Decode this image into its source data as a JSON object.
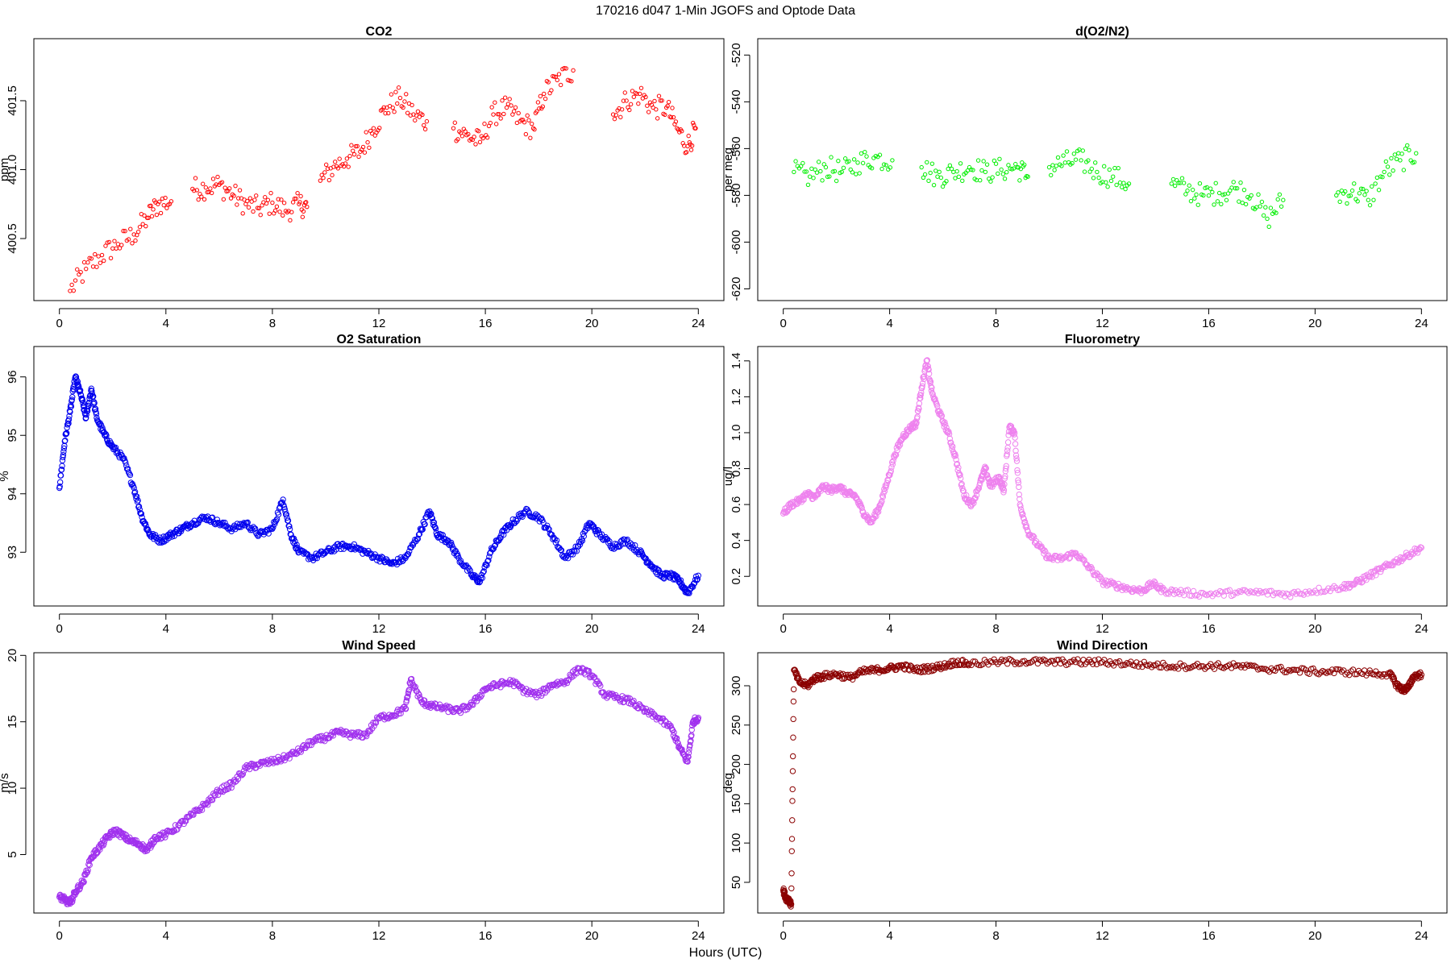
{
  "figure": {
    "title": "170216   d047   1-Min  JGOFS and Optode Data",
    "xlabel": "Hours (UTC)"
  },
  "chart_data": [
    {
      "type": "scatter",
      "id": "co2",
      "title": "CO2",
      "ylabel": "ppm",
      "color": "#ff0000",
      "xlim": [
        -0.96,
        24.96
      ],
      "ylim": [
        400.05,
        401.95
      ],
      "xticks": [
        0,
        4,
        8,
        12,
        16,
        20,
        24
      ],
      "yticks": [
        400.5,
        401.0,
        401.5
      ],
      "ytick_labels": [
        "400.5",
        "401.0",
        "401.5"
      ],
      "segments": [
        {
          "x": [
            0.4,
            1.0,
            1.6,
            2.2,
            2.8,
            3.3,
            3.7,
            4.2
          ],
          "y": [
            400.12,
            400.28,
            400.38,
            400.46,
            400.53,
            400.65,
            400.75,
            400.77
          ]
        },
        {
          "x": [
            5.0,
            5.5,
            6.0,
            6.5,
            7.0,
            7.5,
            8.0,
            8.5,
            9.0,
            9.3
          ],
          "y": [
            400.86,
            400.87,
            400.89,
            400.82,
            400.75,
            400.72,
            400.76,
            400.7,
            400.75,
            400.73
          ]
        },
        {
          "x": [
            9.8,
            10.3,
            10.8,
            11.3,
            11.8,
            12.3,
            12.8,
            13.3,
            13.8
          ],
          "y": [
            400.92,
            401.02,
            401.08,
            401.13,
            401.3,
            401.45,
            401.52,
            401.4,
            401.35
          ]
        },
        {
          "x": [
            14.8,
            15.3,
            15.8,
            16.3,
            16.8,
            17.3,
            17.8,
            18.2,
            18.7,
            19.3
          ],
          "y": [
            401.3,
            401.25,
            401.2,
            401.4,
            401.45,
            401.35,
            401.3,
            401.55,
            401.65,
            401.72
          ]
        },
        {
          "x": [
            20.8,
            21.3,
            21.8,
            22.3,
            22.8,
            23.2,
            23.6,
            23.9
          ],
          "y": [
            401.4,
            401.5,
            401.55,
            401.45,
            401.45,
            401.3,
            401.17,
            401.3
          ]
        }
      ]
    },
    {
      "type": "scatter",
      "id": "do2n2",
      "title": "d(O2/N2)",
      "ylabel": "per meg",
      "color": "#00ee00",
      "xlim": [
        -0.96,
        24.96
      ],
      "ylim": [
        -625,
        -513
      ],
      "xticks": [
        0,
        4,
        8,
        12,
        16,
        20,
        24
      ],
      "yticks": [
        -620,
        -600,
        -580,
        -560,
        -540,
        -520
      ],
      "ytick_labels": [
        "-620",
        "-600",
        "-580",
        "-560",
        "-540",
        "-520"
      ],
      "segments": [
        {
          "x": [
            0.4,
            1.0,
            1.6,
            2.2,
            2.8,
            3.4,
            4.1
          ],
          "y": [
            -570,
            -572,
            -568,
            -570,
            -566,
            -564,
            -565
          ]
        },
        {
          "x": [
            5.2,
            5.8,
            6.4,
            7.0,
            7.6,
            8.2,
            8.8,
            9.2
          ],
          "y": [
            -568,
            -572,
            -570,
            -568,
            -570,
            -569,
            -568,
            -572
          ]
        },
        {
          "x": [
            10.0,
            10.6,
            11.2,
            11.8,
            12.4,
            13.0
          ],
          "y": [
            -568,
            -566,
            -565,
            -570,
            -572,
            -575
          ]
        },
        {
          "x": [
            14.6,
            15.2,
            15.8,
            16.4,
            17.0,
            17.6,
            18.2,
            18.8
          ],
          "y": [
            -575,
            -578,
            -580,
            -579,
            -577,
            -580,
            -590,
            -582
          ]
        },
        {
          "x": [
            20.8,
            21.4,
            22.0,
            22.6,
            23.2,
            23.8
          ],
          "y": [
            -580,
            -578,
            -582,
            -570,
            -565,
            -562
          ]
        }
      ]
    },
    {
      "type": "scatter",
      "id": "o2sat",
      "title": "O2 Saturation",
      "ylabel": "%",
      "color": "#0000ee",
      "xlim": [
        -0.96,
        24.96
      ],
      "ylim": [
        92.08,
        96.52
      ],
      "xticks": [
        0,
        4,
        8,
        12,
        16,
        20,
        24
      ],
      "yticks": [
        93,
        94,
        95,
        96
      ],
      "ytick_labels": [
        "93",
        "94",
        "95",
        "96"
      ],
      "x": [
        0.0,
        0.2,
        0.4,
        0.6,
        0.8,
        1.0,
        1.2,
        1.4,
        1.7,
        2.0,
        2.4,
        2.8,
        3.1,
        3.4,
        3.8,
        4.2,
        4.6,
        5.0,
        5.5,
        6.0,
        6.5,
        7.0,
        7.5,
        8.0,
        8.4,
        8.7,
        9.0,
        9.5,
        10.0,
        10.5,
        11.0,
        11.5,
        12.0,
        12.5,
        13.0,
        13.5,
        13.9,
        14.2,
        14.6,
        15.0,
        15.5,
        15.8,
        16.2,
        16.6,
        17.0,
        17.5,
        18.0,
        18.5,
        19.0,
        19.5,
        19.9,
        20.3,
        20.8,
        21.3,
        21.8,
        22.2,
        22.6,
        23.0,
        23.3,
        23.6,
        24.0
      ],
      "y": [
        94.1,
        94.9,
        95.4,
        96.0,
        95.7,
        95.3,
        95.8,
        95.3,
        95.0,
        94.8,
        94.6,
        94.1,
        93.6,
        93.3,
        93.2,
        93.3,
        93.4,
        93.5,
        93.6,
        93.5,
        93.4,
        93.5,
        93.3,
        93.4,
        93.9,
        93.3,
        93.0,
        92.9,
        93.0,
        93.1,
        93.1,
        93.0,
        92.9,
        92.8,
        92.9,
        93.3,
        93.7,
        93.3,
        93.2,
        92.9,
        92.6,
        92.5,
        93.0,
        93.3,
        93.5,
        93.7,
        93.6,
        93.3,
        92.9,
        93.1,
        93.5,
        93.3,
        93.1,
        93.2,
        93.0,
        92.8,
        92.6,
        92.6,
        92.5,
        92.3,
        92.6
      ]
    },
    {
      "type": "scatter",
      "id": "fluor",
      "title": "Fluorometry",
      "ylabel": "ug/l",
      "color": "#ee82ee",
      "xlim": [
        -0.96,
        24.96
      ],
      "ylim": [
        0.035,
        1.48
      ],
      "xticks": [
        0,
        4,
        8,
        12,
        16,
        20,
        24
      ],
      "yticks": [
        0.2,
        0.4,
        0.6,
        0.8,
        1.0,
        1.2,
        1.4
      ],
      "ytick_labels": [
        "0.2",
        "0.4",
        "0.6",
        "0.8",
        "1.0",
        "1.2",
        "1.4"
      ],
      "x": [
        0.0,
        0.3,
        0.6,
        0.9,
        1.2,
        1.5,
        1.8,
        2.1,
        2.4,
        2.7,
        3.0,
        3.3,
        3.6,
        3.9,
        4.2,
        4.5,
        4.8,
        5.0,
        5.2,
        5.4,
        5.6,
        5.9,
        6.2,
        6.5,
        6.8,
        7.1,
        7.4,
        7.6,
        7.8,
        8.1,
        8.3,
        8.5,
        8.7,
        8.9,
        9.2,
        9.6,
        10.0,
        10.5,
        11.0,
        11.5,
        12.0,
        12.5,
        13.0,
        13.5,
        13.9,
        14.3,
        15.0,
        16.0,
        17.0,
        18.0,
        19.0,
        20.0,
        21.0,
        21.5,
        22.0,
        22.5,
        23.0,
        23.5,
        24.0
      ],
      "y": [
        0.55,
        0.6,
        0.62,
        0.66,
        0.64,
        0.7,
        0.68,
        0.7,
        0.66,
        0.65,
        0.56,
        0.5,
        0.58,
        0.72,
        0.88,
        0.98,
        1.03,
        1.05,
        1.25,
        1.4,
        1.22,
        1.1,
        1.0,
        0.85,
        0.65,
        0.6,
        0.72,
        0.8,
        0.7,
        0.75,
        0.68,
        1.03,
        1.0,
        0.6,
        0.45,
        0.37,
        0.3,
        0.3,
        0.33,
        0.25,
        0.17,
        0.15,
        0.13,
        0.12,
        0.16,
        0.12,
        0.11,
        0.1,
        0.11,
        0.11,
        0.1,
        0.12,
        0.14,
        0.16,
        0.2,
        0.24,
        0.28,
        0.32,
        0.36
      ]
    },
    {
      "type": "scatter",
      "id": "wspd",
      "title": "Wind Speed",
      "ylabel": "m/s",
      "color": "#a030ee",
      "xlim": [
        -0.96,
        24.96
      ],
      "ylim": [
        0.6,
        20.2
      ],
      "xticks": [
        0,
        4,
        8,
        12,
        16,
        20,
        24
      ],
      "yticks": [
        5,
        10,
        15,
        20
      ],
      "ytick_labels": [
        "5",
        "10",
        "15",
        "20"
      ],
      "x": [
        0.0,
        0.2,
        0.4,
        0.6,
        0.9,
        1.2,
        1.5,
        1.8,
        2.1,
        2.4,
        2.7,
        3.0,
        3.3,
        3.6,
        4.0,
        4.5,
        5.0,
        5.5,
        6.0,
        6.5,
        7.0,
        7.5,
        8.0,
        8.5,
        9.0,
        9.5,
        10.0,
        10.5,
        11.0,
        11.5,
        12.0,
        12.5,
        13.0,
        13.2,
        13.6,
        14.0,
        14.5,
        15.0,
        15.5,
        16.0,
        16.5,
        17.0,
        17.5,
        18.0,
        18.5,
        19.0,
        19.5,
        20.0,
        20.5,
        21.0,
        21.5,
        22.0,
        22.5,
        23.0,
        23.3,
        23.6,
        23.8,
        24.0
      ],
      "y": [
        1.8,
        1.6,
        1.3,
        2.2,
        3.0,
        4.8,
        5.5,
        6.3,
        6.8,
        6.4,
        6.0,
        5.8,
        5.3,
        6.3,
        6.5,
        7.2,
        8.0,
        8.8,
        9.8,
        10.3,
        11.5,
        11.8,
        12.0,
        12.3,
        12.8,
        13.5,
        13.8,
        14.2,
        14.0,
        14.0,
        15.3,
        15.5,
        16.0,
        18.2,
        16.5,
        16.2,
        16.0,
        15.8,
        16.3,
        17.5,
        17.8,
        18.0,
        17.3,
        17.0,
        17.8,
        18.0,
        19.0,
        18.5,
        17.0,
        16.8,
        16.5,
        15.8,
        15.3,
        14.5,
        13.0,
        12.0,
        15.0,
        15.3
      ]
    },
    {
      "type": "scatter",
      "id": "wdir",
      "title": "Wind Direction",
      "ylabel": "deg",
      "color": "#8b0000",
      "xlim": [
        -0.96,
        24.96
      ],
      "ylim": [
        11,
        342
      ],
      "xticks": [
        0,
        4,
        8,
        12,
        16,
        20,
        24
      ],
      "yticks": [
        50,
        100,
        150,
        200,
        250,
        300
      ],
      "ytick_labels": [
        "50",
        "100",
        "150",
        "200",
        "250",
        "300"
      ],
      "x": [
        0.0,
        0.1,
        0.2,
        0.3,
        0.4,
        0.6,
        0.9,
        1.2,
        1.5,
        2.0,
        2.5,
        3.0,
        3.5,
        4.0,
        4.5,
        5.0,
        5.5,
        6.0,
        6.5,
        7.0,
        8.0,
        9.0,
        10.0,
        11.0,
        12.0,
        13.0,
        14.0,
        15.0,
        16.0,
        17.0,
        18.0,
        19.0,
        20.0,
        21.0,
        22.0,
        22.8,
        23.1,
        23.3,
        23.5,
        23.7,
        24.0
      ],
      "y": [
        40,
        30,
        28,
        22,
        320,
        305,
        300,
        310,
        312,
        315,
        310,
        318,
        320,
        322,
        325,
        320,
        322,
        325,
        330,
        328,
        330,
        331,
        330,
        330,
        330,
        328,
        326,
        325,
        325,
        325,
        322,
        320,
        318,
        318,
        316,
        315,
        300,
        295,
        297,
        312,
        314
      ]
    }
  ]
}
